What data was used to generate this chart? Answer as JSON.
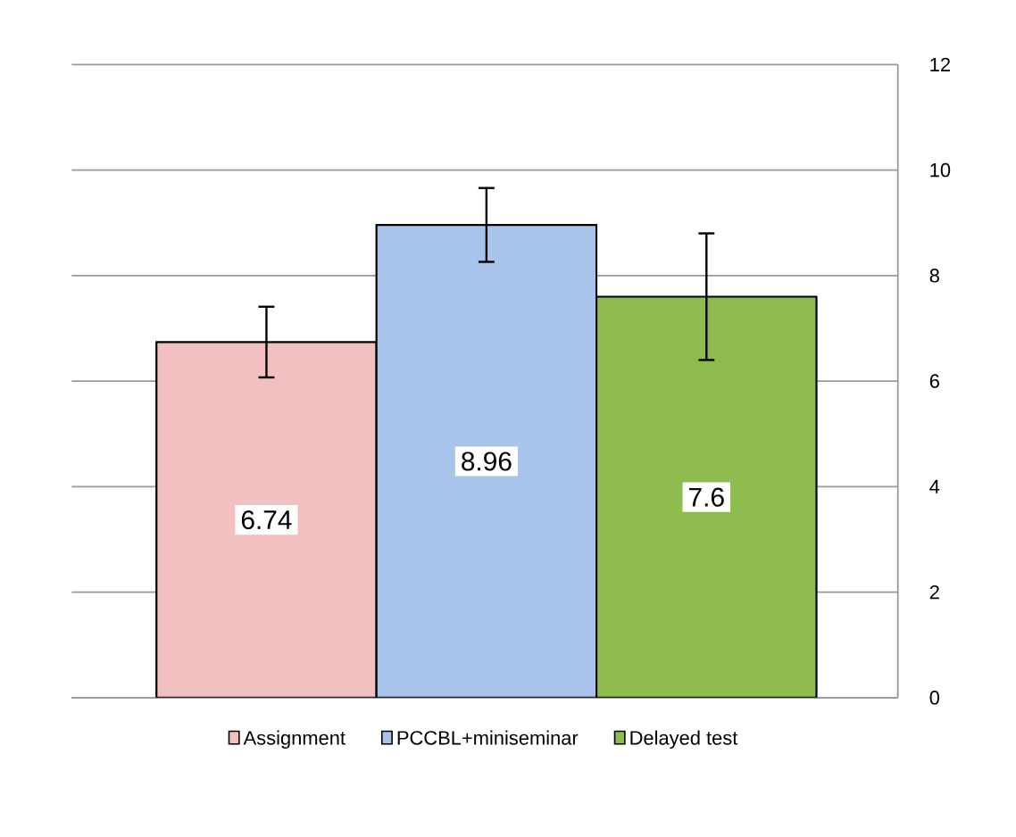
{
  "chart_data": {
    "type": "bar",
    "categories": [
      null,
      null,
      null
    ],
    "series": [
      {
        "name": "Assignment",
        "color": "#f2c0c0",
        "values": [
          6.74,
          null,
          null
        ],
        "errors": [
          0.67,
          null,
          null
        ]
      },
      {
        "name": "PCCBL+miniseminar",
        "color": "#a9c4eb",
        "values": [
          null,
          8.96,
          null
        ],
        "errors": [
          null,
          0.7,
          null
        ]
      },
      {
        "name": "Delayed test",
        "color": "#8fbc4f",
        "values": [
          null,
          null,
          7.6
        ],
        "errors": [
          null,
          null,
          1.2
        ]
      }
    ],
    "ylim": [
      0,
      12
    ],
    "yticks": [
      0,
      2,
      4,
      6,
      8,
      10,
      12
    ],
    "data_labels": true,
    "grid": "y",
    "legend": "bottom",
    "tick_labels": "y"
  }
}
